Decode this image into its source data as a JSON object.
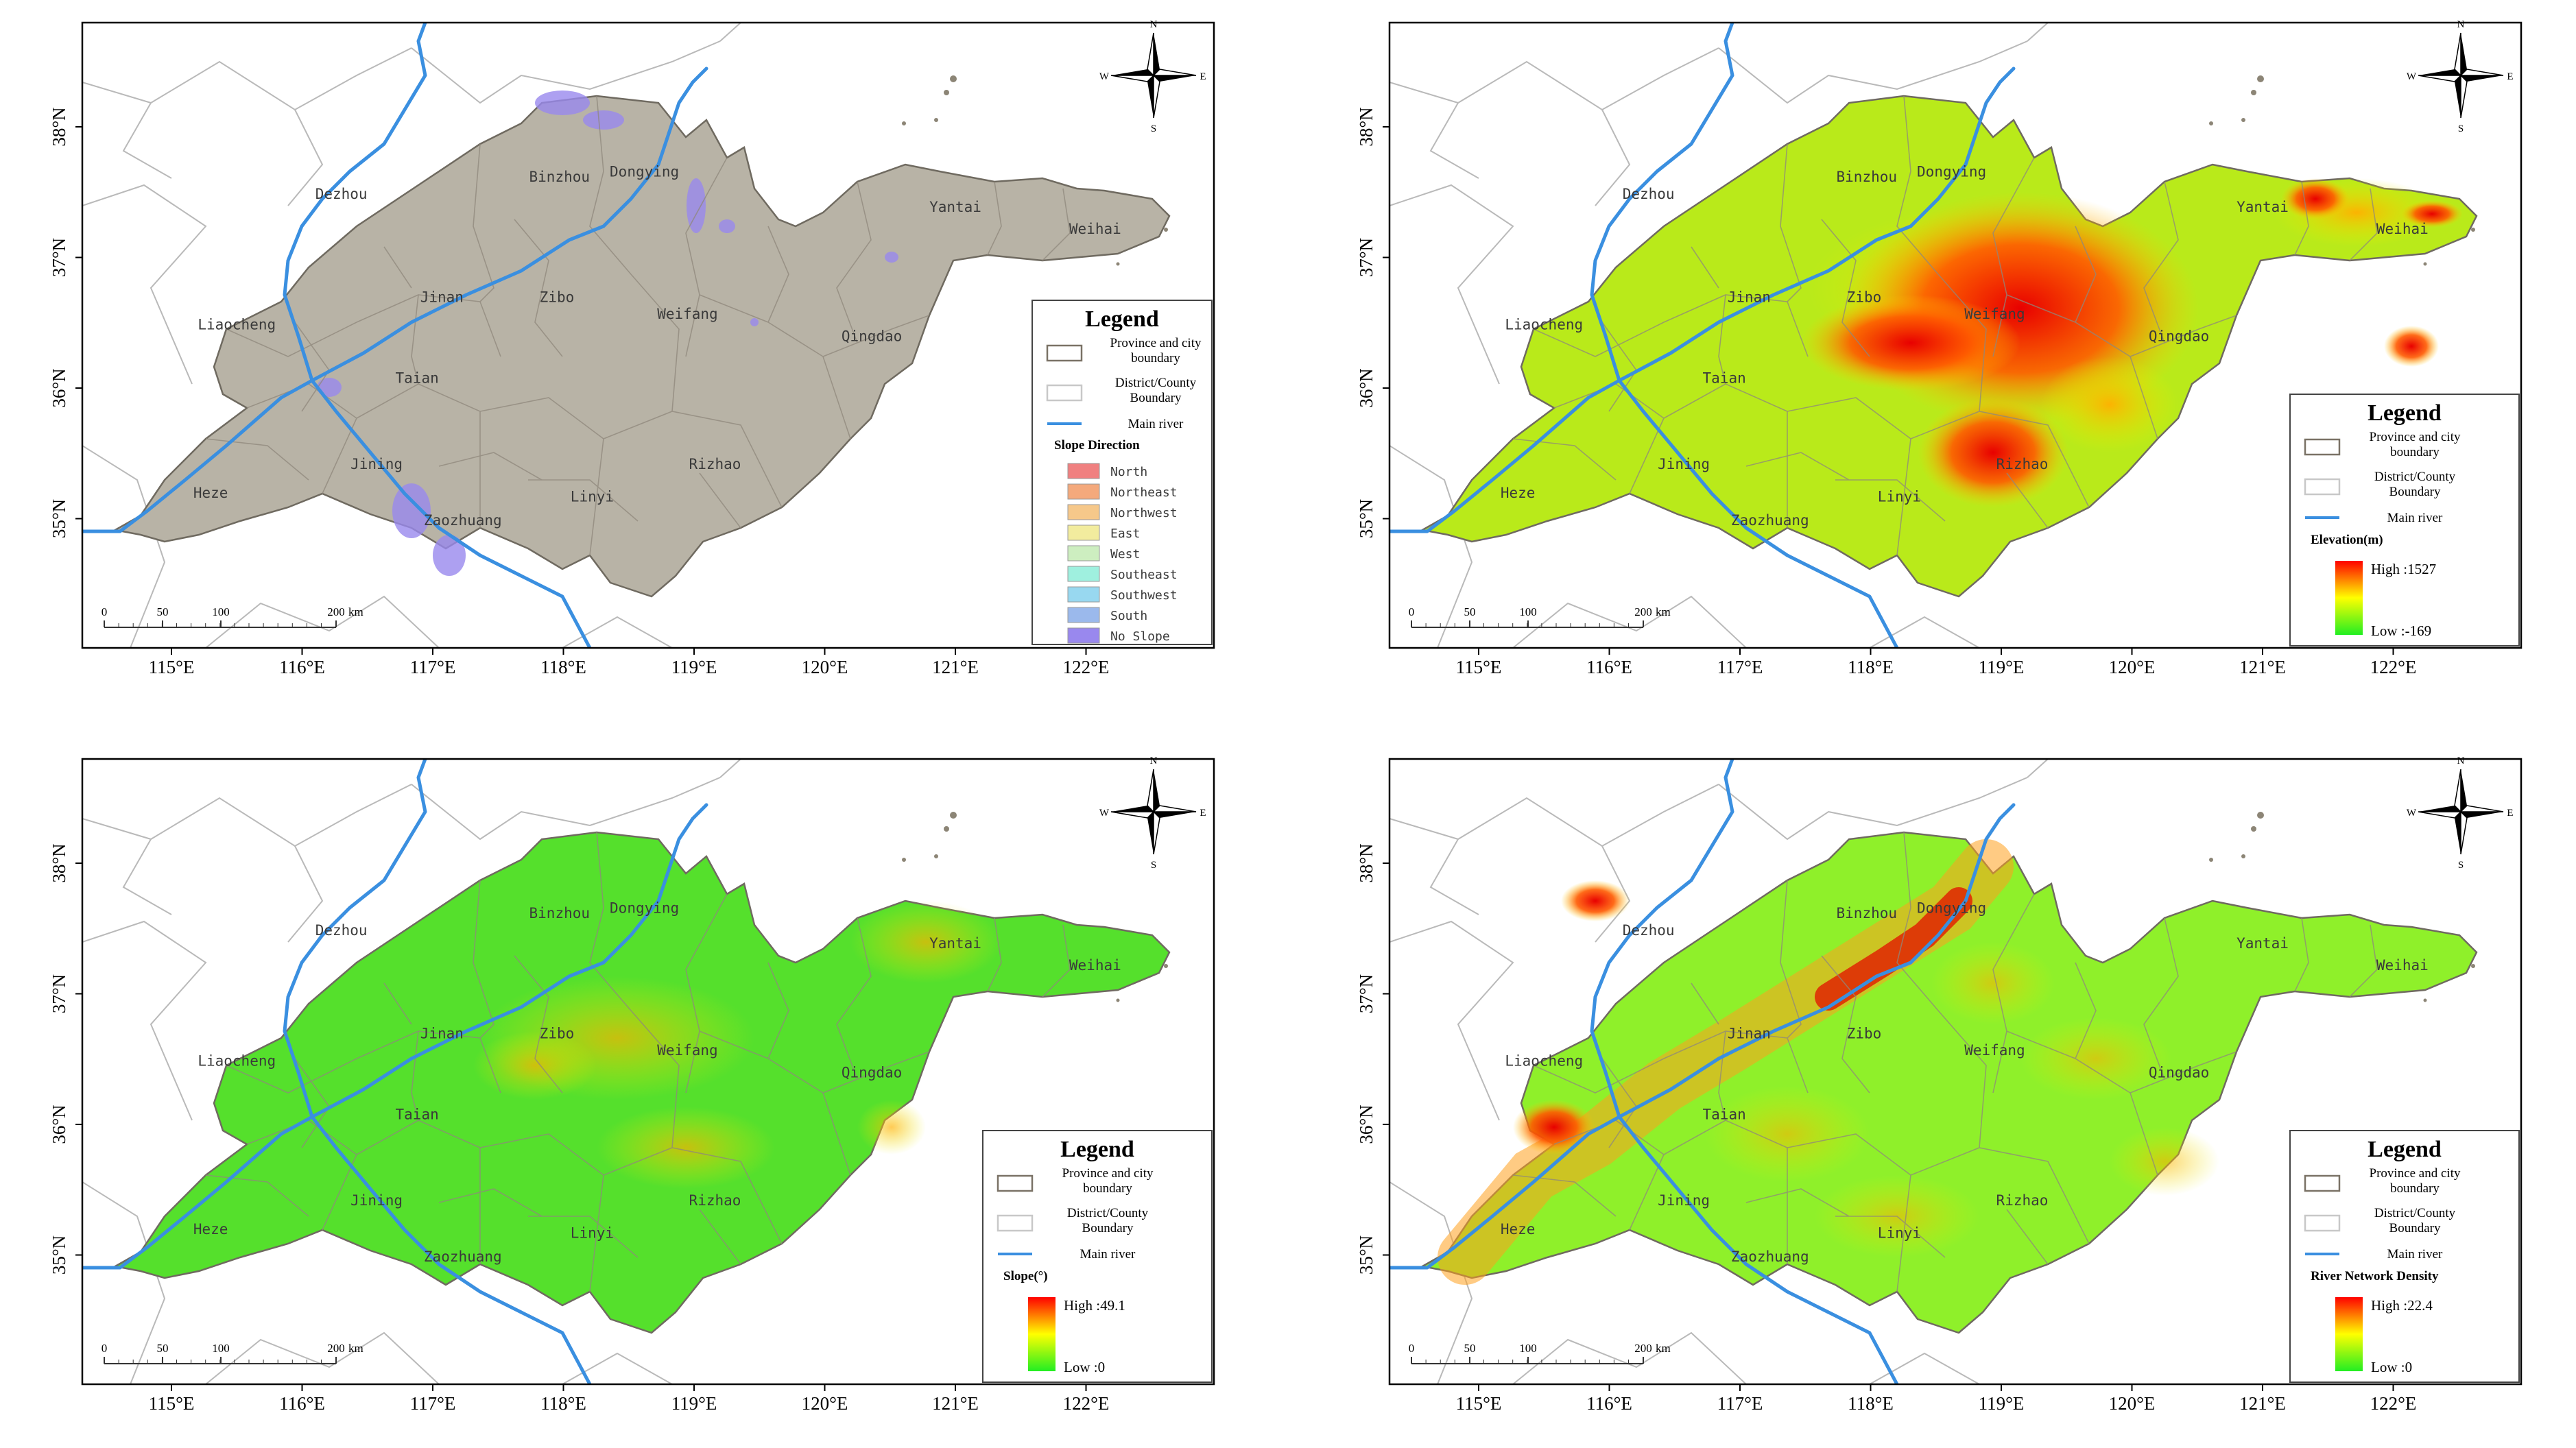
{
  "shared": {
    "x_ticks": [
      "115°E",
      "116°E",
      "117°E",
      "118°E",
      "119°E",
      "120°E",
      "121°E",
      "122°E"
    ],
    "y_ticks": [
      "38°N",
      "37°N",
      "36°N",
      "35°N"
    ],
    "compass": {
      "n": "N",
      "s": "S",
      "e": "E",
      "w": "W"
    },
    "scalebar": {
      "labels": [
        "0",
        "50",
        "100",
        "200"
      ],
      "unit": "km"
    },
    "cities": [
      {
        "name": "Dezhou",
        "lon": 116.3,
        "lat": 37.45
      },
      {
        "name": "Binzhou",
        "lon": 117.97,
        "lat": 37.58
      },
      {
        "name": "Dongying",
        "lon": 118.62,
        "lat": 37.62
      },
      {
        "name": "Yantai",
        "lon": 121.0,
        "lat": 37.35
      },
      {
        "name": "Weihai",
        "lon": 122.07,
        "lat": 37.18
      },
      {
        "name": "Liaocheng",
        "lon": 115.5,
        "lat": 36.45
      },
      {
        "name": "Jinan",
        "lon": 117.07,
        "lat": 36.66
      },
      {
        "name": "Zibo",
        "lon": 117.95,
        "lat": 36.66
      },
      {
        "name": "Weifang",
        "lon": 118.95,
        "lat": 36.53
      },
      {
        "name": "Qingdao",
        "lon": 120.36,
        "lat": 36.36
      },
      {
        "name": "Taian",
        "lon": 116.88,
        "lat": 36.04
      },
      {
        "name": "Rizhao",
        "lon": 119.16,
        "lat": 35.38
      },
      {
        "name": "Heze",
        "lon": 115.3,
        "lat": 35.16
      },
      {
        "name": "Jining",
        "lon": 116.57,
        "lat": 35.38
      },
      {
        "name": "Linyi",
        "lon": 118.22,
        "lat": 35.13
      },
      {
        "name": "Zaozhuang",
        "lon": 117.23,
        "lat": 34.95
      }
    ]
  },
  "panels": [
    {
      "id": "slope-direction",
      "legend": {
        "title": "Legend",
        "province_boundary": "Province and city boundary",
        "district_boundary": "District/County Boundary",
        "main_river": "Main river",
        "section_title": "Slope Direction",
        "classes": [
          {
            "label": "North",
            "color": "#f08080"
          },
          {
            "label": "Northeast",
            "color": "#f4a97c"
          },
          {
            "label": "Northwest",
            "color": "#f6c88a"
          },
          {
            "label": "East",
            "color": "#f2ec9e"
          },
          {
            "label": "West",
            "color": "#cdeec0"
          },
          {
            "label": "Southeast",
            "color": "#9ff0df"
          },
          {
            "label": "Southwest",
            "color": "#98d8f0"
          },
          {
            "label": "South",
            "color": "#9bb9ec"
          },
          {
            "label": "No Slope",
            "color": "#9988ee"
          }
        ]
      },
      "fill_color": "#b8b3a6"
    },
    {
      "id": "elevation",
      "legend": {
        "title": "Legend",
        "province_boundary": "Province and city boundary",
        "district_boundary": "District/County Boundary",
        "main_river": "Main river",
        "section_title": "Elevation(m)",
        "high": "High :1527",
        "low": "Low :-169"
      }
    },
    {
      "id": "slope",
      "legend": {
        "title": "Legend",
        "province_boundary": "Province and city boundary",
        "district_boundary": "District/County Boundary",
        "main_river": "Main river",
        "section_title": "Slope(°)",
        "high": "High :49.1",
        "low": "Low :0"
      }
    },
    {
      "id": "river-network-density",
      "legend": {
        "title": "Legend",
        "province_boundary": "Province and city boundary",
        "district_boundary": "District/County Boundary",
        "main_river": "Main river",
        "section_title": "River Network Density",
        "high": "High :22.4",
        "low": "Low :0"
      }
    }
  ],
  "colors": {
    "ramp_high": "#ff0000",
    "ramp_mid": "#ffff00",
    "ramp_low": "#22ee22",
    "river": "#3a8fe0",
    "boundary": "#8a8478",
    "frame": "#000000"
  }
}
